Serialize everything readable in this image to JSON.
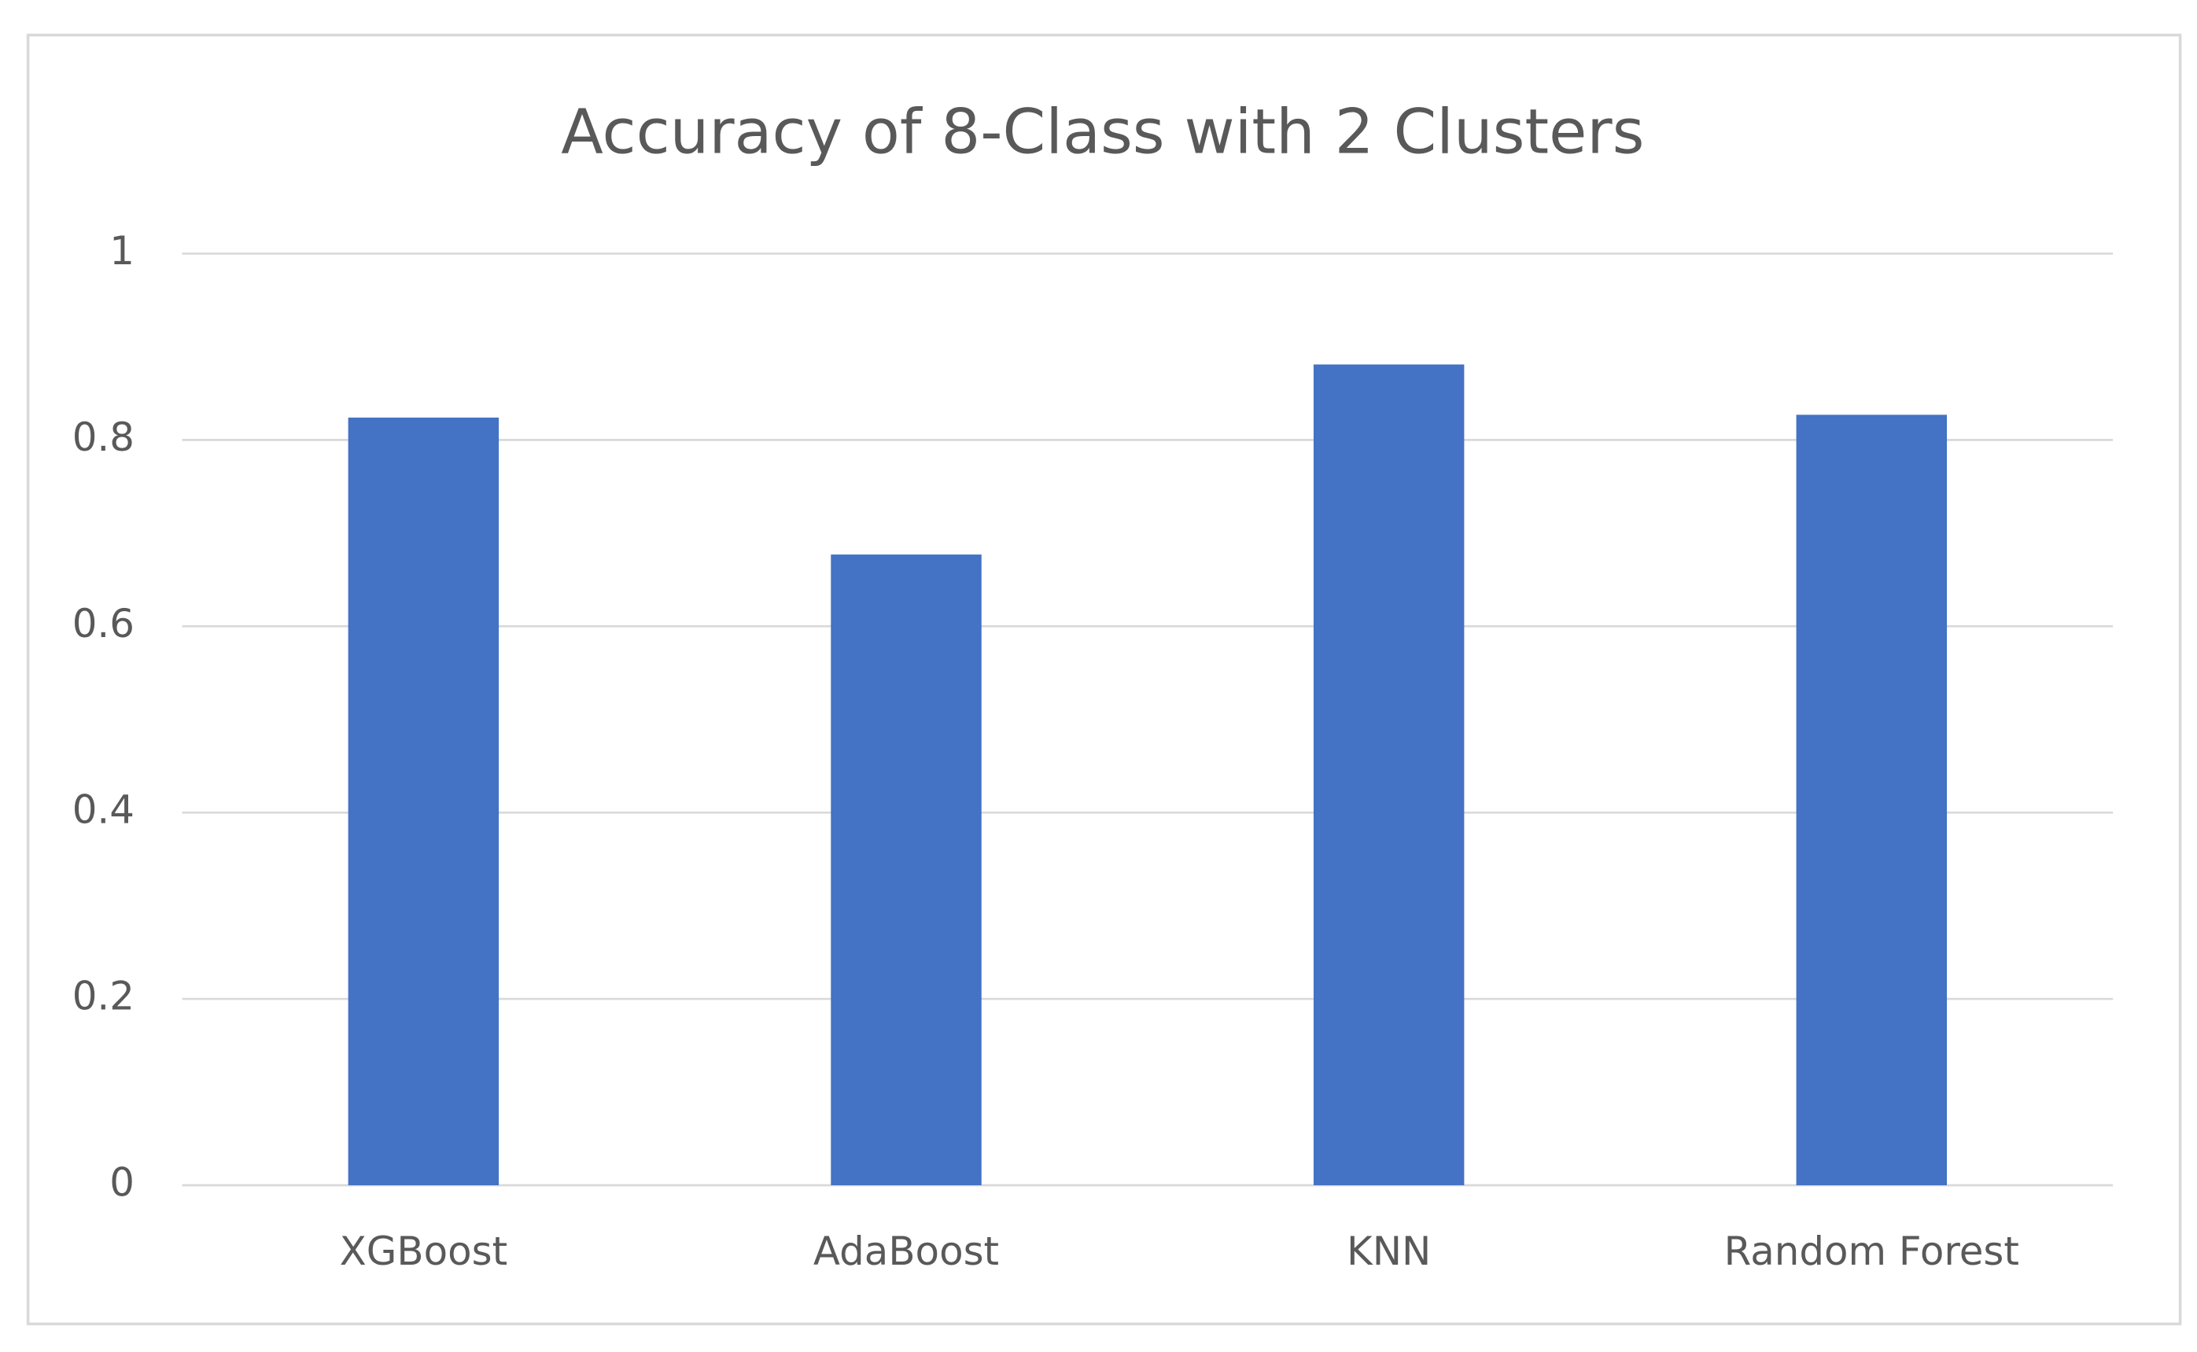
{
  "chart_data": {
    "type": "bar",
    "title": "Accuracy of 8-Class with 2 Clusters",
    "categories": [
      "XGBoost",
      "AdaBoost",
      "KNN",
      "Random Forest"
    ],
    "values": [
      0.824,
      0.677,
      0.881,
      0.827
    ],
    "color": "#4472c4",
    "ylim": [
      0,
      1
    ],
    "yticks": [
      0,
      0.2,
      0.4,
      0.6,
      0.8,
      1
    ],
    "grid": true
  }
}
